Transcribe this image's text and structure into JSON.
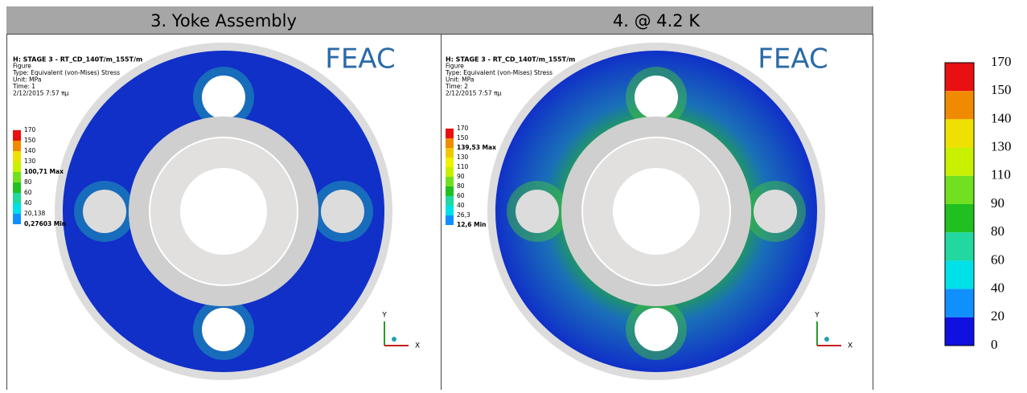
{
  "header": {
    "left": "3.   Yoke Assembly",
    "right": "4.   @ 4.2 K"
  },
  "panels": [
    {
      "info": [
        "H: STAGE 3 - RT_CD_140T/m_155T/m",
        "Figure",
        "Type: Equivalent (von-Mises) Stress",
        "Unit: MPa",
        "Time: 1",
        "2/12/2015 7:57 πμ"
      ],
      "legend": [
        "170",
        "150",
        "140",
        "130",
        "100,71 Max",
        "80",
        "60",
        "40",
        "20,138",
        "0,27603 Min"
      ],
      "logo": "FEAC",
      "axis_y": "Y",
      "axis_x": "X"
    },
    {
      "info": [
        "H: STAGE 3 - RT_CD_140T/m_155T/m",
        "Figure",
        "Type: Equivalent (von-Mises) Stress",
        "Unit: MPa",
        "Time: 2",
        "2/12/2015 7:57 πμ"
      ],
      "legend": [
        "170",
        "150",
        "139,53 Max",
        "130",
        "110",
        "90",
        "80",
        "60",
        "40",
        "26,3",
        "12,6 Min"
      ],
      "logo": "FEAC",
      "axis_y": "Y",
      "axis_x": "X"
    }
  ],
  "scale": {
    "labels": [
      "170",
      "150",
      "140",
      "130",
      "110",
      "90",
      "80",
      "60",
      "40",
      "20",
      "0"
    ]
  }
}
